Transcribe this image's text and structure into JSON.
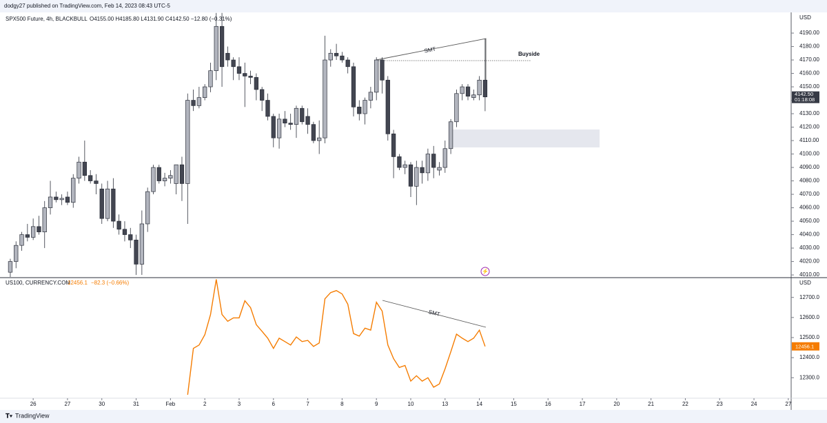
{
  "header": "dodgy27 published on TradingView.com, Feb 14, 2023 08:43 UTC-5",
  "footer_brand": "TradingView",
  "chart_data": [
    {
      "type": "candlestick",
      "legend": "SPX500 Future, 4h, BLACKBULL",
      "ohlc_text": "O4155.00  H4185.80  L4131.90  C4142.50  −12.80 (−0.31%)",
      "currency": "USD",
      "up_color": "#b2b5be",
      "down_color": "#434651",
      "open": [
        4012,
        4020,
        4032,
        4040,
        4038,
        4046,
        4042,
        4060,
        4068,
        4066,
        4068,
        4064,
        4082,
        4094,
        4084,
        4080,
        4074,
        4052,
        4074,
        4050,
        4044,
        4040,
        4036,
        4018,
        4048,
        4072,
        4090,
        4080,
        4082,
        4078,
        4092,
        4078,
        4140,
        4136,
        4142,
        4150,
        4162,
        4195,
        4175,
        4170,
        4165,
        4160,
        4158,
        4157,
        4148,
        4140,
        4128,
        4112,
        4126,
        4123,
        4122,
        4134,
        4128,
        4122,
        4110,
        4112,
        4170,
        4175,
        4173,
        4170,
        4165,
        4135,
        4130,
        4140,
        4146,
        4170,
        4155,
        4115,
        4098,
        4090,
        4092,
        4076,
        4090,
        4086,
        4100,
        4088,
        4090,
        4104,
        4124,
        4145,
        4150,
        4142,
        4144,
        4155
      ],
      "high": [
        4022,
        4035,
        4042,
        4048,
        4052,
        4054,
        4065,
        4080,
        4072,
        4070,
        4072,
        4085,
        4098,
        4110,
        4088,
        4085,
        4078,
        4080,
        4082,
        4055,
        4050,
        4045,
        4040,
        4058,
        4075,
        4092,
        4092,
        4086,
        4088,
        4092,
        4098,
        4145,
        4148,
        4150,
        4152,
        4168,
        4205,
        4205,
        4180,
        4172,
        4172,
        4168,
        4162,
        4160,
        4150,
        4145,
        4130,
        4130,
        4132,
        4130,
        4136,
        4136,
        4134,
        4124,
        4125,
        4188,
        4178,
        4182,
        4176,
        4172,
        4168,
        4140,
        4142,
        4150,
        4172,
        4172,
        4158,
        4118,
        4100,
        4095,
        4094,
        4095,
        4095,
        4104,
        4106,
        4094,
        4110,
        4126,
        4148,
        4152,
        4152,
        4148,
        4158,
        4185.8
      ],
      "low": [
        4008,
        4015,
        4028,
        4035,
        4036,
        4040,
        4030,
        4055,
        4064,
        4062,
        4062,
        4060,
        4078,
        4080,
        4078,
        4070,
        4048,
        4050,
        4045,
        4040,
        4035,
        4030,
        4010,
        4010,
        4042,
        4070,
        4078,
        4076,
        4078,
        4070,
        4065,
        4048,
        4132,
        4134,
        4140,
        4146,
        4155,
        4150,
        4165,
        4155,
        4155,
        4135,
        4152,
        4140,
        4132,
        4125,
        4105,
        4104,
        4120,
        4118,
        4112,
        4122,
        4115,
        4108,
        4100,
        4108,
        4165,
        4170,
        4168,
        4160,
        4128,
        4125,
        4122,
        4134,
        4140,
        4145,
        4110,
        4082,
        4088,
        4085,
        4068,
        4062,
        4078,
        4080,
        4082,
        4084,
        4086,
        4100,
        4120,
        4140,
        4140,
        4140,
        4140,
        4131.9
      ],
      "close": [
        4020,
        4032,
        4040,
        4038,
        4046,
        4042,
        4060,
        4068,
        4066,
        4067,
        4064,
        4082,
        4094,
        4084,
        4080,
        4078,
        4052,
        4074,
        4050,
        4044,
        4040,
        4036,
        4018,
        4048,
        4072,
        4090,
        4080,
        4082,
        4084,
        4092,
        4078,
        4140,
        4136,
        4142,
        4150,
        4162,
        4195,
        4165,
        4170,
        4165,
        4160,
        4158,
        4157,
        4148,
        4140,
        4128,
        4112,
        4126,
        4123,
        4122,
        4134,
        4124,
        4122,
        4110,
        4112,
        4170,
        4175,
        4173,
        4170,
        4165,
        4135,
        4130,
        4140,
        4146,
        4170,
        4155,
        4115,
        4098,
        4090,
        4092,
        4076,
        4090,
        4086,
        4100,
        4090,
        4090,
        4104,
        4124,
        4145,
        4150,
        4143,
        4144,
        4155,
        4142.5
      ],
      "xlim": [
        -1.8,
        136.5
      ],
      "xticks": [
        {
          "value": 4,
          "label": "26"
        },
        {
          "value": 10,
          "label": "27"
        },
        {
          "value": 16,
          "label": "30"
        },
        {
          "value": 22,
          "label": "31"
        },
        {
          "value": 28,
          "label": "Feb"
        },
        {
          "value": 34,
          "label": "2"
        },
        {
          "value": 40,
          "label": "3"
        },
        {
          "value": 46,
          "label": "6"
        },
        {
          "value": 52,
          "label": "7"
        },
        {
          "value": 58,
          "label": "8"
        },
        {
          "value": 64,
          "label": "9"
        },
        {
          "value": 70,
          "label": "10"
        },
        {
          "value": 76,
          "label": "13"
        },
        {
          "value": 82,
          "label": "14"
        },
        {
          "value": 88,
          "label": "15"
        },
        {
          "value": 94,
          "label": "16"
        },
        {
          "value": 100,
          "label": "17"
        },
        {
          "value": 106,
          "label": "20"
        },
        {
          "value": 112,
          "label": "21"
        },
        {
          "value": 118,
          "label": "22"
        },
        {
          "value": 124,
          "label": "23"
        },
        {
          "value": 130,
          "label": "24"
        },
        {
          "value": 136,
          "label": "27"
        }
      ],
      "ylim": [
        4008.5,
        4205.4
      ],
      "yticks": [
        {
          "value": 4010,
          "label": "4010.00"
        },
        {
          "value": 4020,
          "label": "4020.00"
        },
        {
          "value": 4030,
          "label": "4030.00"
        },
        {
          "value": 4040,
          "label": "4040.00"
        },
        {
          "value": 4050,
          "label": "4050.00"
        },
        {
          "value": 4060,
          "label": "4060.00"
        },
        {
          "value": 4070,
          "label": "4070.00"
        },
        {
          "value": 4080,
          "label": "4080.00"
        },
        {
          "value": 4090,
          "label": "4090.00"
        },
        {
          "value": 4100,
          "label": "4100.00"
        },
        {
          "value": 4110,
          "label": "4110.00"
        },
        {
          "value": 4120,
          "label": "4120.00"
        },
        {
          "value": 4130,
          "label": "4130.00"
        },
        {
          "value": 4140,
          "label": "4140.00"
        },
        {
          "value": 4150,
          "label": "4150.00"
        },
        {
          "value": 4160,
          "label": "4160.00"
        },
        {
          "value": 4170,
          "label": "4170.00"
        },
        {
          "value": 4180,
          "label": "4180.00"
        },
        {
          "value": 4190,
          "label": "4190.00"
        }
      ],
      "grid": false,
      "last_label": "4142.50",
      "countdown": "01:18:08",
      "annotations": [
        "SMT",
        "Buyside"
      ]
    },
    {
      "type": "line",
      "legend": "US100, CURRENCY.COM",
      "value_text": "12456.1",
      "change_text": "−82.3 (−0.66%)",
      "currency": "USD",
      "color": "#f57c00",
      "values": [
        null,
        null,
        null,
        null,
        null,
        null,
        null,
        null,
        null,
        null,
        null,
        null,
        null,
        null,
        null,
        null,
        null,
        null,
        null,
        null,
        null,
        null,
        null,
        null,
        null,
        null,
        null,
        null,
        null,
        null,
        null,
        12215,
        12446,
        12463,
        12514,
        12615,
        12790,
        12615,
        12581,
        12598,
        12598,
        12683,
        12649,
        12564,
        12531,
        12497,
        12446,
        12497,
        12480,
        12463,
        12503,
        12480,
        12486,
        12456,
        12473,
        12693,
        12724,
        12734,
        12717,
        12666,
        12520,
        12507,
        12547,
        12537,
        12676,
        12632,
        12463,
        12395,
        12351,
        12361,
        12283,
        12310,
        12283,
        12300,
        12253,
        12269,
        12344,
        12429,
        12517,
        12497,
        12480,
        12497,
        12537,
        12456.1
      ],
      "ylim": [
        12198,
        12795
      ],
      "yticks": [
        {
          "value": 12300,
          "label": "12300.0"
        },
        {
          "value": 12400,
          "label": "12400.0"
        },
        {
          "value": 12500,
          "label": "12500.0"
        },
        {
          "value": 12600,
          "label": "12600.0"
        },
        {
          "value": 12700,
          "label": "12700.0"
        }
      ],
      "grid": false,
      "annotations": [
        "SMT"
      ]
    }
  ]
}
